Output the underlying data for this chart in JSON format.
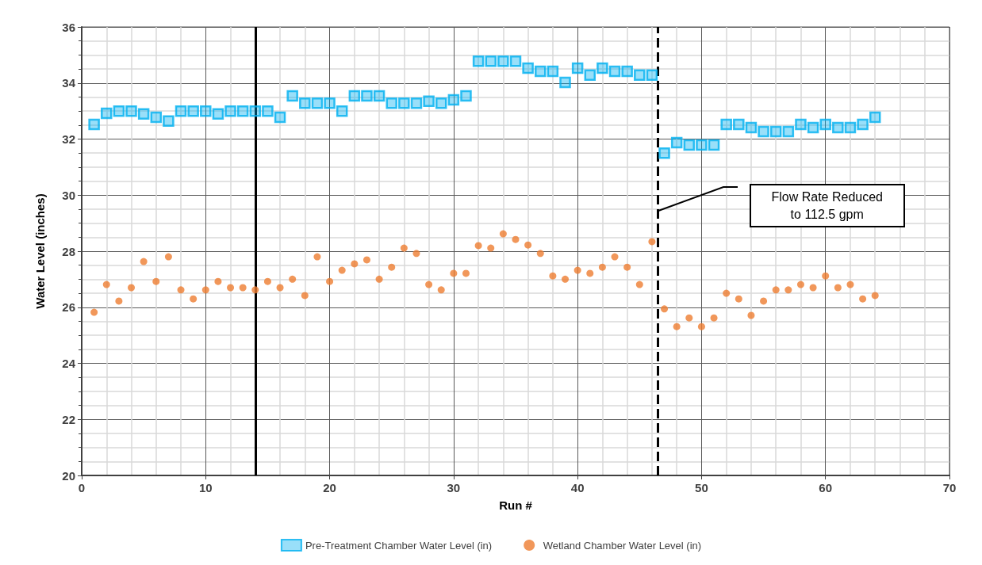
{
  "chart_data": {
    "type": "scatter",
    "xlabel": "Run #",
    "ylabel": "Water Level (inches)",
    "x": [
      1,
      2,
      3,
      4,
      5,
      6,
      7,
      8,
      9,
      10,
      11,
      12,
      13,
      14,
      15,
      16,
      17,
      18,
      19,
      20,
      21,
      22,
      23,
      24,
      25,
      26,
      27,
      28,
      29,
      30,
      31,
      32,
      33,
      34,
      35,
      36,
      37,
      38,
      39,
      40,
      41,
      42,
      43,
      44,
      45,
      46,
      47,
      48,
      49,
      50,
      51,
      52,
      53,
      54,
      55,
      56,
      57,
      58,
      59,
      60,
      61,
      62,
      63,
      64
    ],
    "series": [
      {
        "name": "Pre-Treatment Chamber Water Level (in)",
        "color": "#00b0f0",
        "marker": "square",
        "values": [
          32.52,
          32.92,
          33.0,
          33.0,
          32.9,
          32.78,
          32.64,
          33.0,
          33.0,
          33.0,
          32.9,
          33.0,
          33.0,
          33.0,
          33.0,
          32.78,
          33.54,
          33.28,
          33.28,
          33.28,
          33.0,
          33.54,
          33.54,
          33.54,
          33.28,
          33.28,
          33.28,
          33.35,
          33.28,
          33.4,
          33.54,
          34.78,
          34.78,
          34.78,
          34.78,
          34.53,
          34.42,
          34.42,
          34.02,
          34.53,
          34.28,
          34.53,
          34.42,
          34.42,
          34.28,
          34.28,
          31.5,
          31.87,
          31.79,
          31.79,
          31.79,
          32.52,
          32.52,
          32.41,
          32.27,
          32.27,
          32.27,
          32.52,
          32.41,
          32.52,
          32.41,
          32.41,
          32.52,
          32.78
        ]
      },
      {
        "name": "Wetland Chamber Water Level (in)",
        "color": "#ed7d31",
        "marker": "circle",
        "values": [
          25.82,
          26.81,
          26.22,
          26.7,
          27.63,
          26.92,
          27.8,
          26.62,
          26.3,
          26.62,
          26.92,
          26.7,
          26.7,
          26.62,
          26.92,
          26.7,
          27.0,
          26.42,
          27.8,
          26.92,
          27.32,
          27.55,
          27.69,
          27.0,
          27.43,
          28.11,
          27.92,
          26.81,
          26.62,
          27.21,
          27.21,
          28.2,
          28.11,
          28.62,
          28.42,
          28.22,
          27.92,
          27.12,
          27.0,
          27.32,
          27.21,
          27.43,
          27.8,
          27.43,
          26.81,
          28.34,
          25.94,
          25.31,
          25.62,
          25.31,
          25.62,
          26.5,
          26.3,
          25.71,
          26.22,
          26.62,
          26.62,
          26.81,
          26.7,
          27.12,
          26.7,
          26.81,
          26.3,
          26.42
        ]
      }
    ],
    "xlim": [
      0,
      70
    ],
    "xticks": [
      0,
      10,
      20,
      30,
      40,
      50,
      60,
      70
    ],
    "ylim": [
      20,
      36
    ],
    "yticks": [
      20,
      22,
      24,
      26,
      28,
      30,
      32,
      34,
      36
    ],
    "grid": true,
    "legend": "bottom",
    "ref_lines": [
      {
        "axis": "x",
        "value": 14,
        "color": "#000000",
        "line_style": "solid"
      },
      {
        "axis": "x",
        "value": 46.5,
        "color": "#000000",
        "line_style": "dashed"
      }
    ],
    "annotations": [
      "Flow Rate Reduced\nto 112.5 gpm"
    ]
  }
}
